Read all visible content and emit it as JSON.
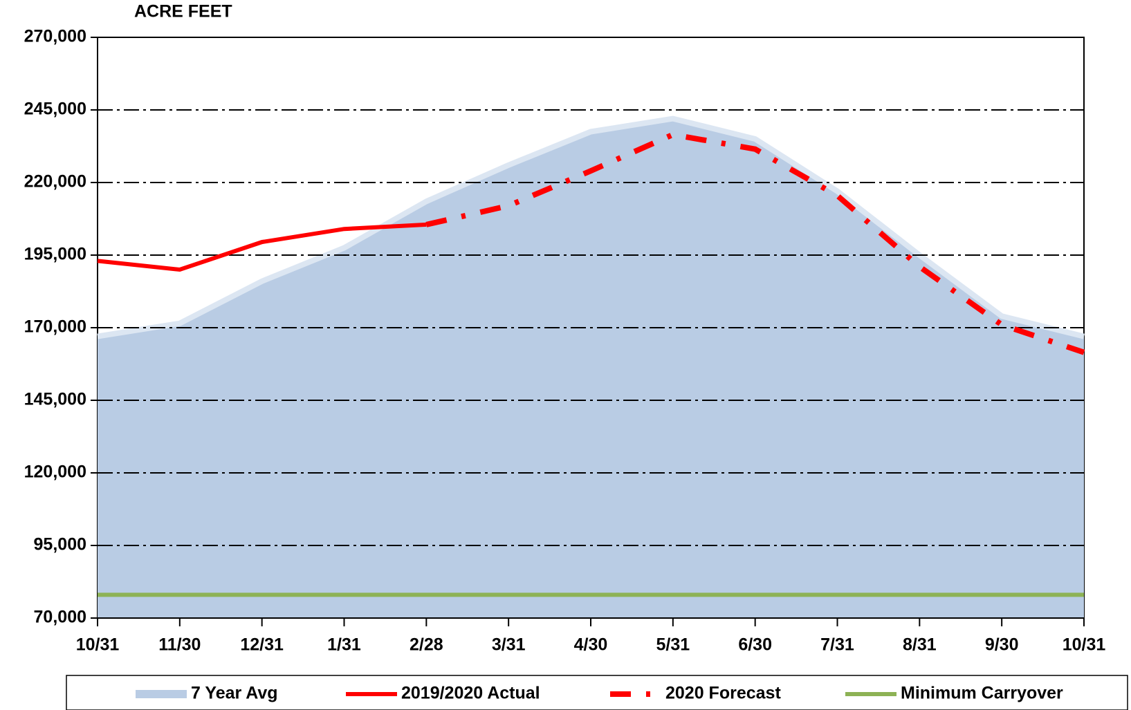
{
  "chart_data": {
    "type": "line",
    "y_label": "ACRE FEET",
    "categories": [
      "10/31",
      "11/30",
      "12/31",
      "1/31",
      "2/28",
      "3/31",
      "4/30",
      "5/31",
      "6/30",
      "7/31",
      "8/31",
      "9/30",
      "10/31"
    ],
    "series": [
      {
        "name": "7 Year Avg",
        "kind": "area",
        "color": "#b9cce4",
        "edge_color": "#dce6f2",
        "values": [
          167000,
          171500,
          186000,
          197500,
          213500,
          226000,
          237500,
          242000,
          235000,
          217000,
          195000,
          174000,
          167000
        ]
      },
      {
        "name": "2019/2020 Actual",
        "kind": "line",
        "dash": "solid",
        "color": "#ff0000",
        "values": [
          193000,
          190000,
          199500,
          204000,
          205500,
          null,
          null,
          null,
          null,
          null,
          null,
          null,
          null
        ]
      },
      {
        "name": "2020 Forecast",
        "kind": "line",
        "dash": "dashdot",
        "color": "#ff0000",
        "values": [
          null,
          null,
          null,
          null,
          205500,
          212000,
          224000,
          236500,
          231500,
          215500,
          191000,
          171000,
          161500
        ]
      },
      {
        "name": "Minimum Carryover",
        "kind": "line",
        "dash": "solid",
        "color": "#8db255",
        "values": [
          78000,
          78000,
          78000,
          78000,
          78000,
          78000,
          78000,
          78000,
          78000,
          78000,
          78000,
          78000,
          78000
        ]
      }
    ],
    "ylim": [
      70000,
      270000
    ],
    "yticks": [
      {
        "value": 70000,
        "label": "70,000"
      },
      {
        "value": 95000,
        "label": "95,000"
      },
      {
        "value": 120000,
        "label": "120,000"
      },
      {
        "value": 145000,
        "label": "145,000"
      },
      {
        "value": 170000,
        "label": "170,000"
      },
      {
        "value": 195000,
        "label": "195,000"
      },
      {
        "value": 220000,
        "label": "220,000"
      },
      {
        "value": 245000,
        "label": "245,000"
      },
      {
        "value": 270000,
        "label": "270,000"
      }
    ],
    "grid": true,
    "legend": "bottom"
  }
}
